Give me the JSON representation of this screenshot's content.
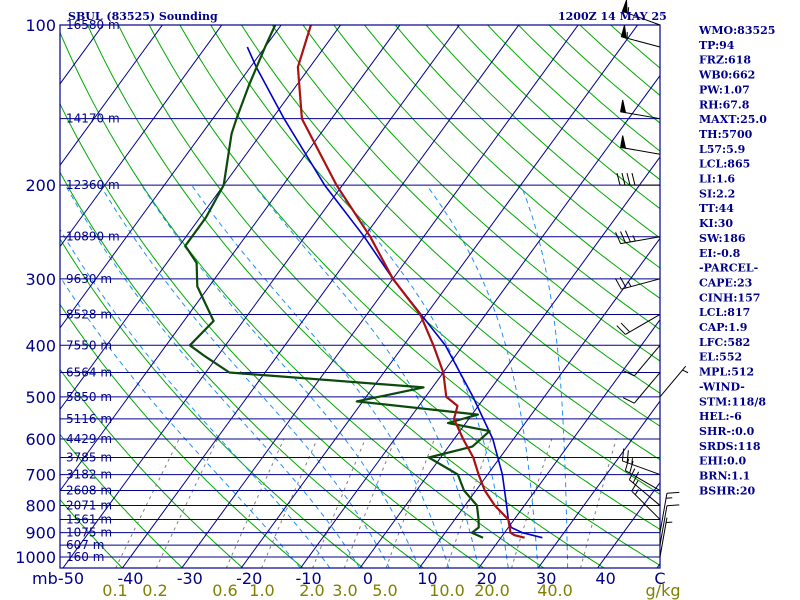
{
  "header": {
    "station": "SBUL (83525) Sounding",
    "time": "1200Z 14 MAY 25"
  },
  "indices": [
    "WMO:83525",
    "TP:94",
    "FRZ:618",
    "WB0:662",
    "PW:1.07",
    "RH:67.8",
    "MAXT:25.0",
    "TH:5700",
    "L57:5.9",
    "LCL:865",
    "LI:1.6",
    "SI:2.2",
    "TT:44",
    "KI:30",
    "SW:186",
    "EI:-0.8",
    "-PARCEL-",
    "CAPE:23",
    "CINH:157",
    "LCL:817",
    "CAP:1.9",
    "LFC:582",
    "EL:552",
    "MPL:512",
    "-WIND-",
    "STM:118/8",
    "HEL:-6",
    "SHR-:0.0",
    "SRDS:118",
    "EHI:0.0",
    "BRN:1.1",
    "BSHR:20"
  ],
  "colors": {
    "isobar": "#00008b",
    "isotherm": "#00008b",
    "dry_adiabat": "#00aa00",
    "moist_adiabat": "#1e90ff",
    "mixing_ratio": "#808080",
    "temperature": "#aa1111",
    "dewpoint": "#0b4a0b",
    "parcel": "#0000cc",
    "text": "#00008b",
    "mixing_label": "#808000"
  },
  "chart_data": {
    "type": "skew-t",
    "x_unit": "C",
    "y_unit": "mb",
    "pressure_axis": {
      "labels": [
        "100",
        "200",
        "300",
        "400",
        "500",
        "600",
        "700",
        "800",
        "900",
        "1000",
        "mb"
      ],
      "range": [
        1050,
        100
      ],
      "scale": "log"
    },
    "temperature_axis": {
      "labels": [
        "-50",
        "-40",
        "-30",
        "-20",
        "-10",
        "0",
        "10",
        "20",
        "30",
        "40",
        "C"
      ]
    },
    "mixing_ratio_labels": [
      "0.1",
      "0.2",
      "0.6",
      "1.0",
      "2.0",
      "3.0",
      "5.0",
      "10.0",
      "20.0",
      "40.0",
      "g/kg"
    ],
    "mixing_ratio_values": [
      0.1,
      0.2,
      0.6,
      1.0,
      2.0,
      3.0,
      5.0,
      10.0,
      20.0,
      40.0
    ],
    "heights": [
      {
        "p": 100,
        "label": "16580 m"
      },
      {
        "p": 150,
        "label": "14170 m"
      },
      {
        "p": 200,
        "label": "12360 m"
      },
      {
        "p": 250,
        "label": "10890 m"
      },
      {
        "p": 300,
        "label": "9630 m"
      },
      {
        "p": 350,
        "label": "8528 m"
      },
      {
        "p": 400,
        "label": "7550 m"
      },
      {
        "p": 450,
        "label": "6564 m"
      },
      {
        "p": 500,
        "label": "5850 m"
      },
      {
        "p": 550,
        "label": "5116 m"
      },
      {
        "p": 600,
        "label": "4429 m"
      },
      {
        "p": 650,
        "label": "3785 m"
      },
      {
        "p": 700,
        "label": "3182 m"
      },
      {
        "p": 750,
        "label": "2608 m"
      },
      {
        "p": 800,
        "label": "2071 m"
      },
      {
        "p": 850,
        "label": "1561 m"
      },
      {
        "p": 900,
        "label": "1075 m"
      },
      {
        "p": 950,
        "label": "607 m"
      },
      {
        "p": 1000,
        "label": "160 m"
      }
    ],
    "temperature": [
      {
        "p": 920,
        "t": 24.0
      },
      {
        "p": 910,
        "t": 22.0
      },
      {
        "p": 900,
        "t": 21.0
      },
      {
        "p": 850,
        "t": 19.0
      },
      {
        "p": 800,
        "t": 15.0
      },
      {
        "p": 750,
        "t": 11.5
      },
      {
        "p": 700,
        "t": 8.5
      },
      {
        "p": 650,
        "t": 5.5
      },
      {
        "p": 600,
        "t": 1.5
      },
      {
        "p": 550,
        "t": -2.5
      },
      {
        "p": 520,
        "t": -3.5
      },
      {
        "p": 500,
        "t": -6.5
      },
      {
        "p": 450,
        "t": -10.0
      },
      {
        "p": 400,
        "t": -15.0
      },
      {
        "p": 350,
        "t": -21.0
      },
      {
        "p": 300,
        "t": -30.0
      },
      {
        "p": 250,
        "t": -39.0
      },
      {
        "p": 200,
        "t": -51.0
      },
      {
        "p": 150,
        "t": -65.0
      },
      {
        "p": 120,
        "t": -72.0
      },
      {
        "p": 100,
        "t": -75.0
      }
    ],
    "dewpoint": [
      {
        "p": 920,
        "t": 17.0
      },
      {
        "p": 900,
        "t": 14.5
      },
      {
        "p": 880,
        "t": 15.0
      },
      {
        "p": 850,
        "t": 14.0
      },
      {
        "p": 800,
        "t": 12.0
      },
      {
        "p": 750,
        "t": 8.0
      },
      {
        "p": 700,
        "t": 5.0
      },
      {
        "p": 650,
        "t": -2.0
      },
      {
        "p": 620,
        "t": 4.0
      },
      {
        "p": 580,
        "t": 5.0
      },
      {
        "p": 560,
        "t": -3.0
      },
      {
        "p": 540,
        "t": 1.0
      },
      {
        "p": 510,
        "t": -21.0
      },
      {
        "p": 480,
        "t": -11.5
      },
      {
        "p": 450,
        "t": -46.0
      },
      {
        "p": 420,
        "t": -52.0
      },
      {
        "p": 400,
        "t": -56.0
      },
      {
        "p": 360,
        "t": -55.0
      },
      {
        "p": 310,
        "t": -62.0
      },
      {
        "p": 280,
        "t": -65.0
      },
      {
        "p": 260,
        "t": -69.0
      },
      {
        "p": 230,
        "t": -69.0
      },
      {
        "p": 200,
        "t": -70.0
      },
      {
        "p": 160,
        "t": -75.0
      },
      {
        "p": 150,
        "t": -76.0
      },
      {
        "p": 130,
        "t": -78.0
      },
      {
        "p": 110,
        "t": -80.0
      },
      {
        "p": 100,
        "t": -81.0
      }
    ],
    "parcel": [
      {
        "p": 920,
        "t": 27.0
      },
      {
        "p": 900,
        "t": 23.0
      },
      {
        "p": 880,
        "t": 20.5
      },
      {
        "p": 850,
        "t": 19.0
      },
      {
        "p": 800,
        "t": 17.0
      },
      {
        "p": 700,
        "t": 12.5
      },
      {
        "p": 600,
        "t": 6.5
      },
      {
        "p": 500,
        "t": -2.0
      },
      {
        "p": 400,
        "t": -13.0
      },
      {
        "p": 300,
        "t": -30.0
      },
      {
        "p": 250,
        "t": -40.0
      },
      {
        "p": 200,
        "t": -53.0
      },
      {
        "p": 150,
        "t": -68.0
      },
      {
        "p": 120,
        "t": -79.0
      },
      {
        "p": 110,
        "t": -83.0
      }
    ],
    "winds": [
      {
        "p": 100,
        "dir": 290,
        "spd": 55
      },
      {
        "p": 110,
        "dir": 285,
        "spd": 55
      },
      {
        "p": 150,
        "dir": 280,
        "spd": 50
      },
      {
        "p": 175,
        "dir": 280,
        "spd": 50
      },
      {
        "p": 200,
        "dir": 270,
        "spd": 40
      },
      {
        "p": 250,
        "dir": 260,
        "spd": 35
      },
      {
        "p": 300,
        "dir": 255,
        "spd": 25
      },
      {
        "p": 350,
        "dir": 240,
        "spd": 20
      },
      {
        "p": 400,
        "dir": 220,
        "spd": 10
      },
      {
        "p": 450,
        "dir": 220,
        "spd": 10
      },
      {
        "p": 500,
        "dir": 40,
        "spd": 5
      },
      {
        "p": 700,
        "dir": 290,
        "spd": 25
      },
      {
        "p": 750,
        "dir": 300,
        "spd": 20
      },
      {
        "p": 800,
        "dir": 310,
        "spd": 20
      },
      {
        "p": 850,
        "dir": 315,
        "spd": 15
      },
      {
        "p": 900,
        "dir": 10,
        "spd": 15
      },
      {
        "p": 950,
        "dir": 10,
        "spd": 10
      },
      {
        "p": 1000,
        "dir": 10,
        "spd": 5
      }
    ]
  }
}
